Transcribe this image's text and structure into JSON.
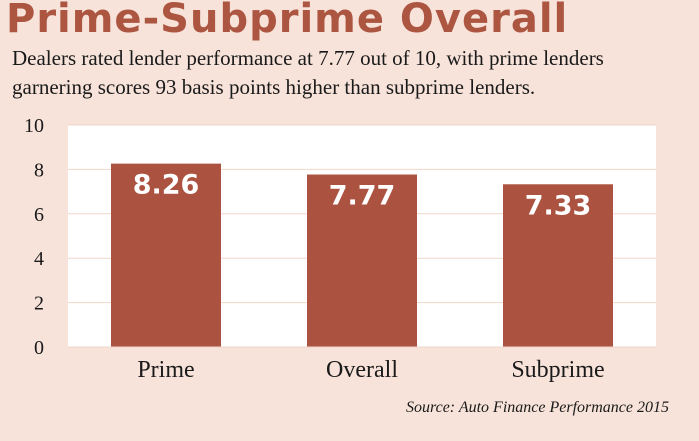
{
  "chart_data": {
    "type": "bar",
    "title": "Prime-Subprime Overall",
    "subtitle": "Dealers rated lender performance at 7.77 out of 10, with prime lenders garnering scores 93 basis points higher than subprime lenders.",
    "categories": [
      "Prime",
      "Overall",
      "Subprime"
    ],
    "values": [
      8.26,
      7.77,
      7.33
    ],
    "data_labels": [
      "8.26",
      "7.77",
      "7.33"
    ],
    "y_ticks": [
      "0",
      "2",
      "4",
      "6",
      "8",
      "10"
    ],
    "ylim": [
      0,
      10
    ],
    "xlabel": "",
    "ylabel": "",
    "grid": true,
    "legend": "none",
    "source": "Source: Auto Finance Performance 2015",
    "colors": {
      "bar": "#ab5340",
      "title": "#ac5540",
      "background": "#f7e3da",
      "plot_background": "#ffffff",
      "grid": "#f1d6ca",
      "label": "#ffffff"
    }
  }
}
